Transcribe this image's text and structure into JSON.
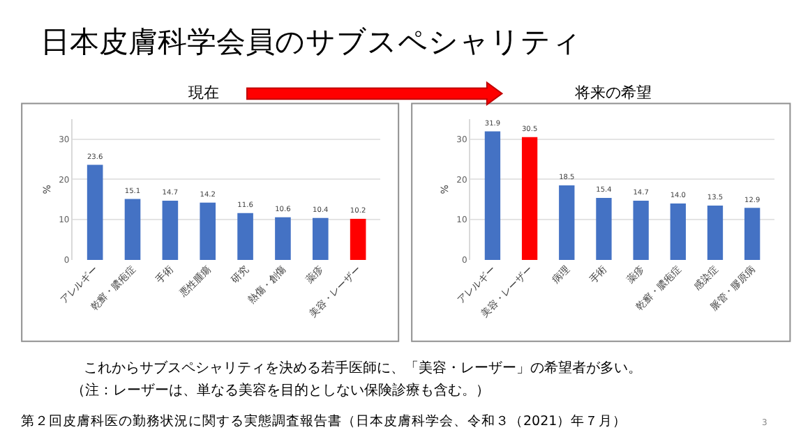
{
  "chart_data": [
    {
      "type": "bar",
      "title": "現在",
      "ylabel": "%",
      "categories": [
        "アレルギー",
        "乾癬・膿疱症",
        "手術",
        "悪性腫瘍",
        "研究",
        "熱傷・創傷",
        "薬疹",
        "美容・レーザー"
      ],
      "values": [
        23.6,
        15.1,
        14.7,
        14.2,
        11.6,
        10.6,
        10.4,
        10.2
      ],
      "colors": [
        "#4472c4",
        "#4472c4",
        "#4472c4",
        "#4472c4",
        "#4472c4",
        "#4472c4",
        "#4472c4",
        "#ff0000"
      ],
      "ylim": [
        0,
        35
      ],
      "yticks": [
        0,
        10,
        20,
        30
      ],
      "grid": "y",
      "data_labels": true,
      "annotations": [
        "日本皮膚科学会員のサブスペシャリティ",
        "これからサブスペシャリティを決める若手医師に、「美容・レーザー」の希望者が多い。",
        "（注：レーザーは、単なる美容を目的としない保険診療も含む。）",
        "第２回皮膚科医の勤務状況に関する実態調査報告書（日本皮膚科学会、令和３（2021）年７月）",
        "3"
      ]
    },
    {
      "type": "bar",
      "title": "将来の希望",
      "ylabel": "%",
      "categories": [
        "アレルギー",
        "美容・レーザー",
        "病理",
        "手術",
        "薬疹",
        "乾癬・膿疱症",
        "感染症",
        "脈管・膠原病"
      ],
      "values": [
        31.9,
        30.5,
        18.5,
        15.4,
        14.7,
        14.0,
        13.5,
        12.9
      ],
      "colors": [
        "#4472c4",
        "#ff0000",
        "#4472c4",
        "#4472c4",
        "#4472c4",
        "#4472c4",
        "#4472c4",
        "#4472c4"
      ],
      "value_labels": [
        "31.9",
        "30.5",
        "18.5",
        "15.4",
        "14.7",
        "14.0",
        "13.5",
        "12.9"
      ],
      "ylim": [
        0,
        35
      ],
      "yticks": [
        0,
        10,
        20,
        30
      ],
      "grid": "y"
    }
  ]
}
